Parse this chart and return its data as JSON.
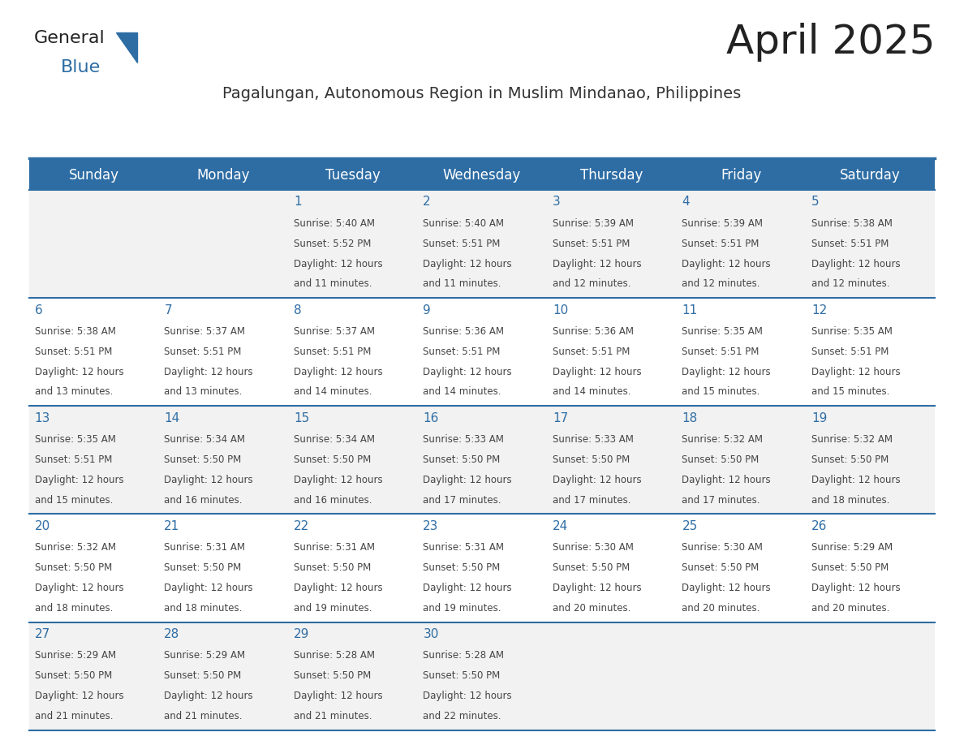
{
  "title": "April 2025",
  "subtitle": "Pagalungan, Autonomous Region in Muslim Mindanao, Philippines",
  "days_of_week": [
    "Sunday",
    "Monday",
    "Tuesday",
    "Wednesday",
    "Thursday",
    "Friday",
    "Saturday"
  ],
  "header_bg": "#2E6DA4",
  "header_text": "#FFFFFF",
  "row_bg_odd": "#F2F2F2",
  "row_bg_even": "#FFFFFF",
  "divider_color": "#2E6DA4",
  "text_color": "#333333",
  "title_color": "#222222",
  "subtitle_color": "#333333",
  "cell_text_color": "#444444",
  "day_num_color": "#2E6DA4",
  "calendar": [
    [
      {
        "day": "",
        "sunrise": "",
        "sunset": "",
        "daylight": ""
      },
      {
        "day": "",
        "sunrise": "",
        "sunset": "",
        "daylight": ""
      },
      {
        "day": "1",
        "sunrise": "5:40 AM",
        "sunset": "5:52 PM",
        "daylight": "12 hours and 11 minutes."
      },
      {
        "day": "2",
        "sunrise": "5:40 AM",
        "sunset": "5:51 PM",
        "daylight": "12 hours and 11 minutes."
      },
      {
        "day": "3",
        "sunrise": "5:39 AM",
        "sunset": "5:51 PM",
        "daylight": "12 hours and 12 minutes."
      },
      {
        "day": "4",
        "sunrise": "5:39 AM",
        "sunset": "5:51 PM",
        "daylight": "12 hours and 12 minutes."
      },
      {
        "day": "5",
        "sunrise": "5:38 AM",
        "sunset": "5:51 PM",
        "daylight": "12 hours and 12 minutes."
      }
    ],
    [
      {
        "day": "6",
        "sunrise": "5:38 AM",
        "sunset": "5:51 PM",
        "daylight": "12 hours and 13 minutes."
      },
      {
        "day": "7",
        "sunrise": "5:37 AM",
        "sunset": "5:51 PM",
        "daylight": "12 hours and 13 minutes."
      },
      {
        "day": "8",
        "sunrise": "5:37 AM",
        "sunset": "5:51 PM",
        "daylight": "12 hours and 14 minutes."
      },
      {
        "day": "9",
        "sunrise": "5:36 AM",
        "sunset": "5:51 PM",
        "daylight": "12 hours and 14 minutes."
      },
      {
        "day": "10",
        "sunrise": "5:36 AM",
        "sunset": "5:51 PM",
        "daylight": "12 hours and 14 minutes."
      },
      {
        "day": "11",
        "sunrise": "5:35 AM",
        "sunset": "5:51 PM",
        "daylight": "12 hours and 15 minutes."
      },
      {
        "day": "12",
        "sunrise": "5:35 AM",
        "sunset": "5:51 PM",
        "daylight": "12 hours and 15 minutes."
      }
    ],
    [
      {
        "day": "13",
        "sunrise": "5:35 AM",
        "sunset": "5:51 PM",
        "daylight": "12 hours and 15 minutes."
      },
      {
        "day": "14",
        "sunrise": "5:34 AM",
        "sunset": "5:50 PM",
        "daylight": "12 hours and 16 minutes."
      },
      {
        "day": "15",
        "sunrise": "5:34 AM",
        "sunset": "5:50 PM",
        "daylight": "12 hours and 16 minutes."
      },
      {
        "day": "16",
        "sunrise": "5:33 AM",
        "sunset": "5:50 PM",
        "daylight": "12 hours and 17 minutes."
      },
      {
        "day": "17",
        "sunrise": "5:33 AM",
        "sunset": "5:50 PM",
        "daylight": "12 hours and 17 minutes."
      },
      {
        "day": "18",
        "sunrise": "5:32 AM",
        "sunset": "5:50 PM",
        "daylight": "12 hours and 17 minutes."
      },
      {
        "day": "19",
        "sunrise": "5:32 AM",
        "sunset": "5:50 PM",
        "daylight": "12 hours and 18 minutes."
      }
    ],
    [
      {
        "day": "20",
        "sunrise": "5:32 AM",
        "sunset": "5:50 PM",
        "daylight": "12 hours and 18 minutes."
      },
      {
        "day": "21",
        "sunrise": "5:31 AM",
        "sunset": "5:50 PM",
        "daylight": "12 hours and 18 minutes."
      },
      {
        "day": "22",
        "sunrise": "5:31 AM",
        "sunset": "5:50 PM",
        "daylight": "12 hours and 19 minutes."
      },
      {
        "day": "23",
        "sunrise": "5:31 AM",
        "sunset": "5:50 PM",
        "daylight": "12 hours and 19 minutes."
      },
      {
        "day": "24",
        "sunrise": "5:30 AM",
        "sunset": "5:50 PM",
        "daylight": "12 hours and 20 minutes."
      },
      {
        "day": "25",
        "sunrise": "5:30 AM",
        "sunset": "5:50 PM",
        "daylight": "12 hours and 20 minutes."
      },
      {
        "day": "26",
        "sunrise": "5:29 AM",
        "sunset": "5:50 PM",
        "daylight": "12 hours and 20 minutes."
      }
    ],
    [
      {
        "day": "27",
        "sunrise": "5:29 AM",
        "sunset": "5:50 PM",
        "daylight": "12 hours and 21 minutes."
      },
      {
        "day": "28",
        "sunrise": "5:29 AM",
        "sunset": "5:50 PM",
        "daylight": "12 hours and 21 minutes."
      },
      {
        "day": "29",
        "sunrise": "5:28 AM",
        "sunset": "5:50 PM",
        "daylight": "12 hours and 21 minutes."
      },
      {
        "day": "30",
        "sunrise": "5:28 AM",
        "sunset": "5:50 PM",
        "daylight": "12 hours and 22 minutes."
      },
      {
        "day": "",
        "sunrise": "",
        "sunset": "",
        "daylight": ""
      },
      {
        "day": "",
        "sunrise": "",
        "sunset": "",
        "daylight": ""
      },
      {
        "day": "",
        "sunrise": "",
        "sunset": "",
        "daylight": ""
      }
    ]
  ],
  "logo_text1": "General",
  "logo_text2": "Blue",
  "logo_color1": "#222222",
  "logo_color2": "#2E6DA4",
  "logo_triangle_color": "#2E6DA4"
}
